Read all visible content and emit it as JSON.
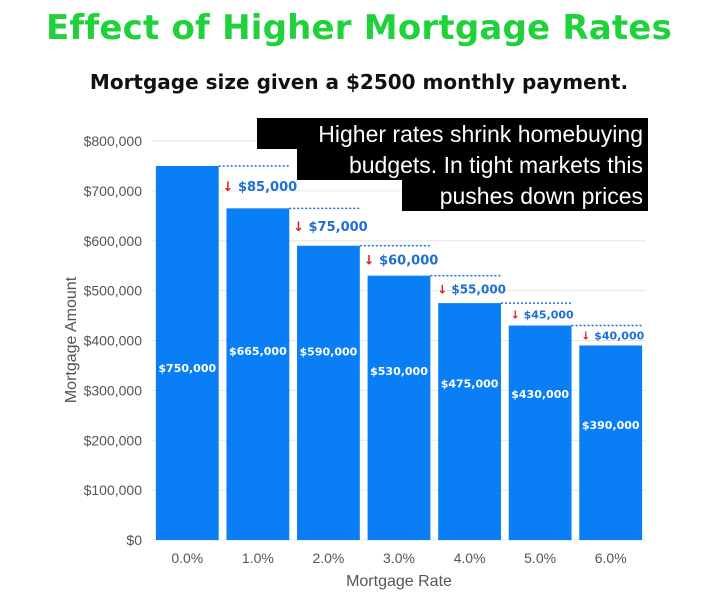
{
  "title": "Effect of Higher Mortgage Rates",
  "subtitle": "Mortgage size given a $2500 monthly payment.",
  "colors": {
    "title": "#1fd13a",
    "bar": "#0a7ff5",
    "difference_label": "#1f6fd6",
    "difference_arrow": "#e0201f",
    "callout_background": "#000000"
  },
  "callout": {
    "lines": [
      "Higher rates shrink homebuying",
      "budgets. In tight markets this",
      "pushes down prices"
    ]
  },
  "chart_data": {
    "type": "bar",
    "categories": [
      "0.0%",
      "1.0%",
      "2.0%",
      "3.0%",
      "4.0%",
      "5.0%",
      "6.0%"
    ],
    "values": [
      750000,
      665000,
      590000,
      530000,
      475000,
      430000,
      390000
    ],
    "value_labels": [
      "$750,000",
      "$665,000",
      "$590,000",
      "$530,000",
      "$475,000",
      "$430,000",
      "$390,000"
    ],
    "difference_labels": [
      "↓ $85,000",
      "↓ $75,000",
      "↓ $60,000",
      "↓ $55,000",
      "↓ $45,000",
      "↓ $40,000"
    ],
    "title": "Effect of Higher Mortgage Rates",
    "subtitle": "Mortgage size given a $2500 monthly payment.",
    "xlabel": "Mortgage Rate",
    "ylabel": "Mortgage Amount",
    "ylim": [
      0,
      800000
    ],
    "yticks": [
      0,
      100000,
      200000,
      300000,
      400000,
      500000,
      600000,
      700000,
      800000
    ],
    "ytick_labels": [
      "$0",
      "$100,000",
      "$200,000",
      "$300,000",
      "$400,000",
      "$500,000",
      "$600,000",
      "$700,000",
      "$800,000"
    ],
    "grid": true,
    "legend": "none"
  }
}
